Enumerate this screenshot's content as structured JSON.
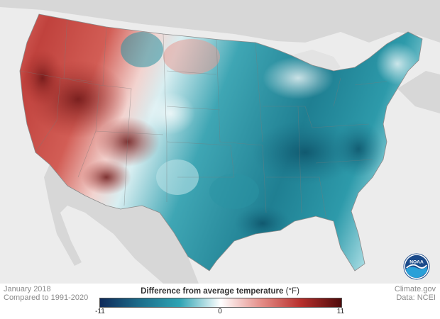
{
  "footer": {
    "period": "January 2018",
    "baseline": "Compared to 1991-2020",
    "source_site": "Climate.gov",
    "source_data": "Data: NCEI"
  },
  "legend": {
    "title": "Difference from average temperature",
    "unit": "(°F)",
    "min_label": "-11",
    "mid_label": "0",
    "max_label": "11",
    "min_value": -11,
    "mid_value": 0,
    "max_value": 11,
    "colors": [
      "#0e2a5a",
      "#1d6f8c",
      "#2fa4b4",
      "#ffffff",
      "#e48c86",
      "#b8302d",
      "#4e0a0a"
    ]
  },
  "logo": {
    "text": "NOAA",
    "icon": "noaa-logo-icon"
  },
  "map": {
    "region": "contiguous-united-states",
    "warm_region": "west",
    "cool_region": "east-and-south",
    "warm_color": "#c8504a",
    "cool_color": "#2d8fa0",
    "land_background": "#d4d4d4",
    "water_background": "#ececec"
  }
}
